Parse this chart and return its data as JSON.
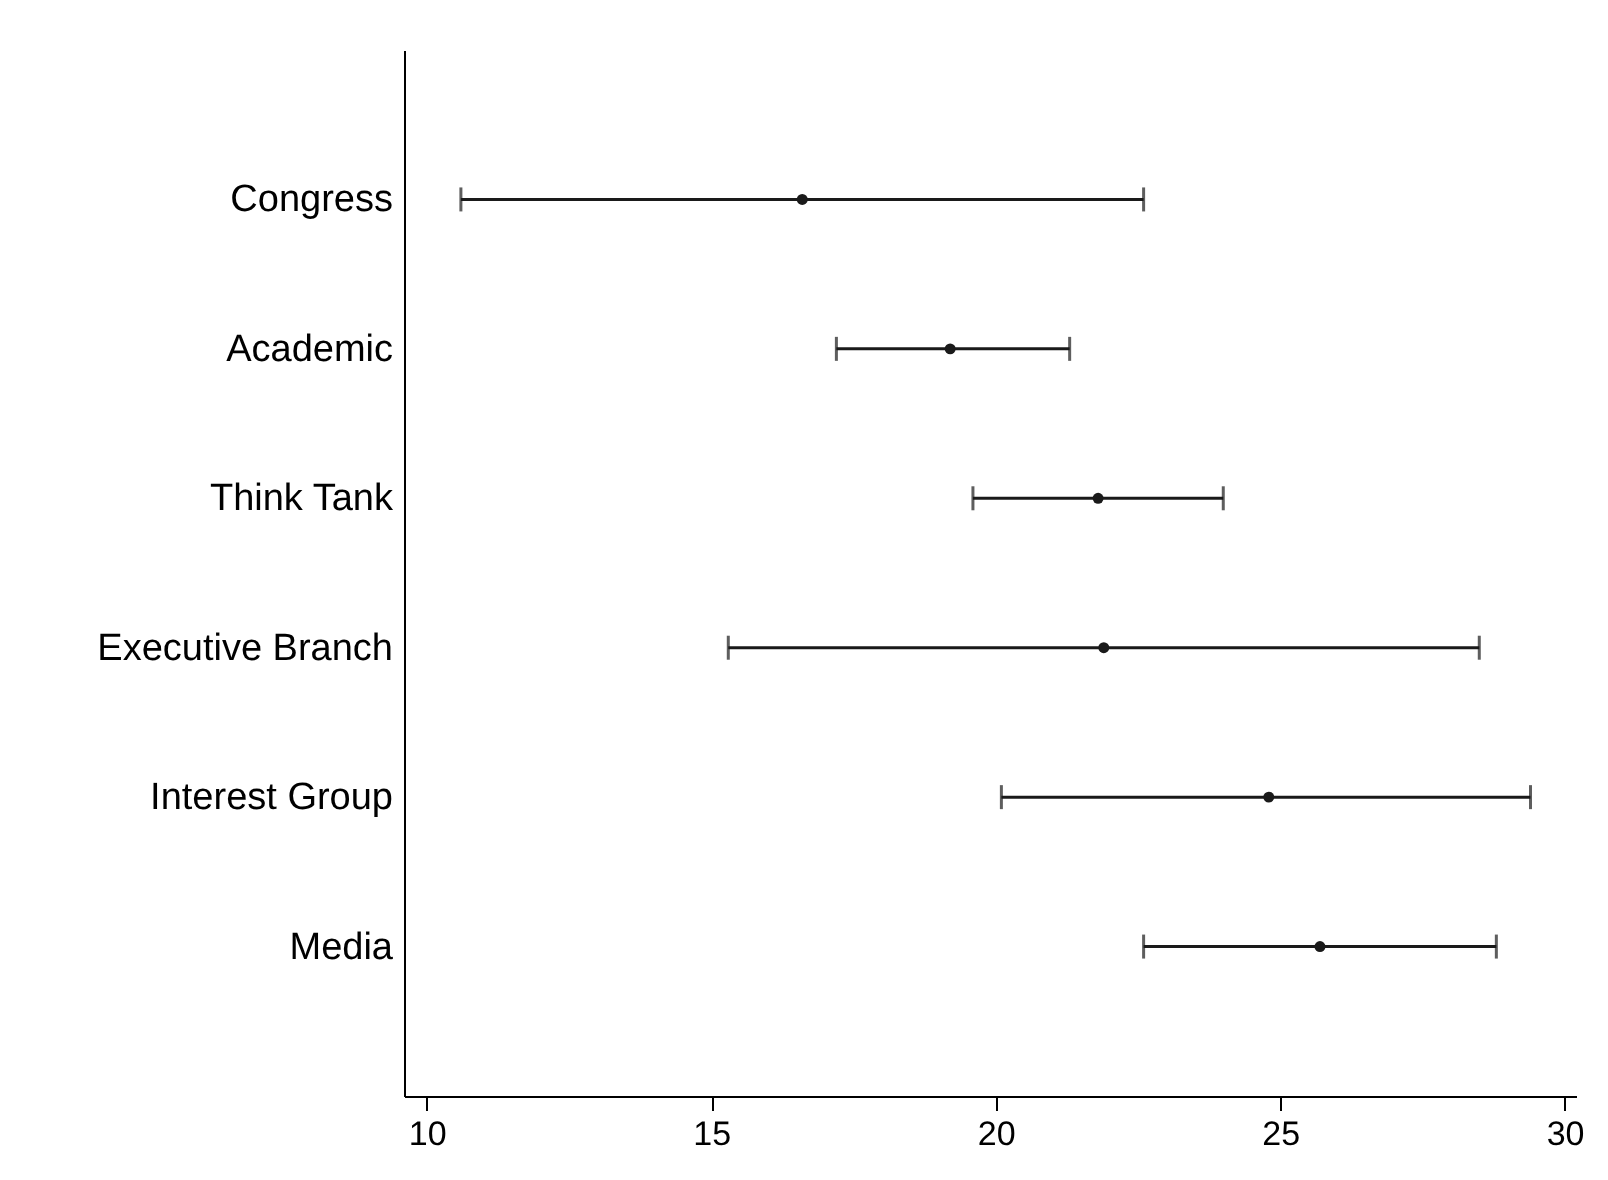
{
  "chart_data": {
    "type": "scatter",
    "orientation": "horizontal",
    "categories": [
      "Congress",
      "Academic",
      "Think Tank",
      "Executive Branch",
      "Interest Group",
      "Media"
    ],
    "values": [
      16.6,
      19.2,
      21.8,
      21.9,
      24.8,
      25.7
    ],
    "errors": [
      [
        10.6,
        22.6
      ],
      [
        17.2,
        21.3
      ],
      [
        19.6,
        24.0
      ],
      [
        15.3,
        28.5
      ],
      [
        20.1,
        29.4
      ],
      [
        22.6,
        28.8
      ]
    ],
    "xlim": [
      9.6,
      30.2
    ],
    "xticks": [
      10,
      15,
      20,
      25,
      30
    ],
    "color": "#1a1a1a",
    "marker": "circle",
    "grid": false
  }
}
